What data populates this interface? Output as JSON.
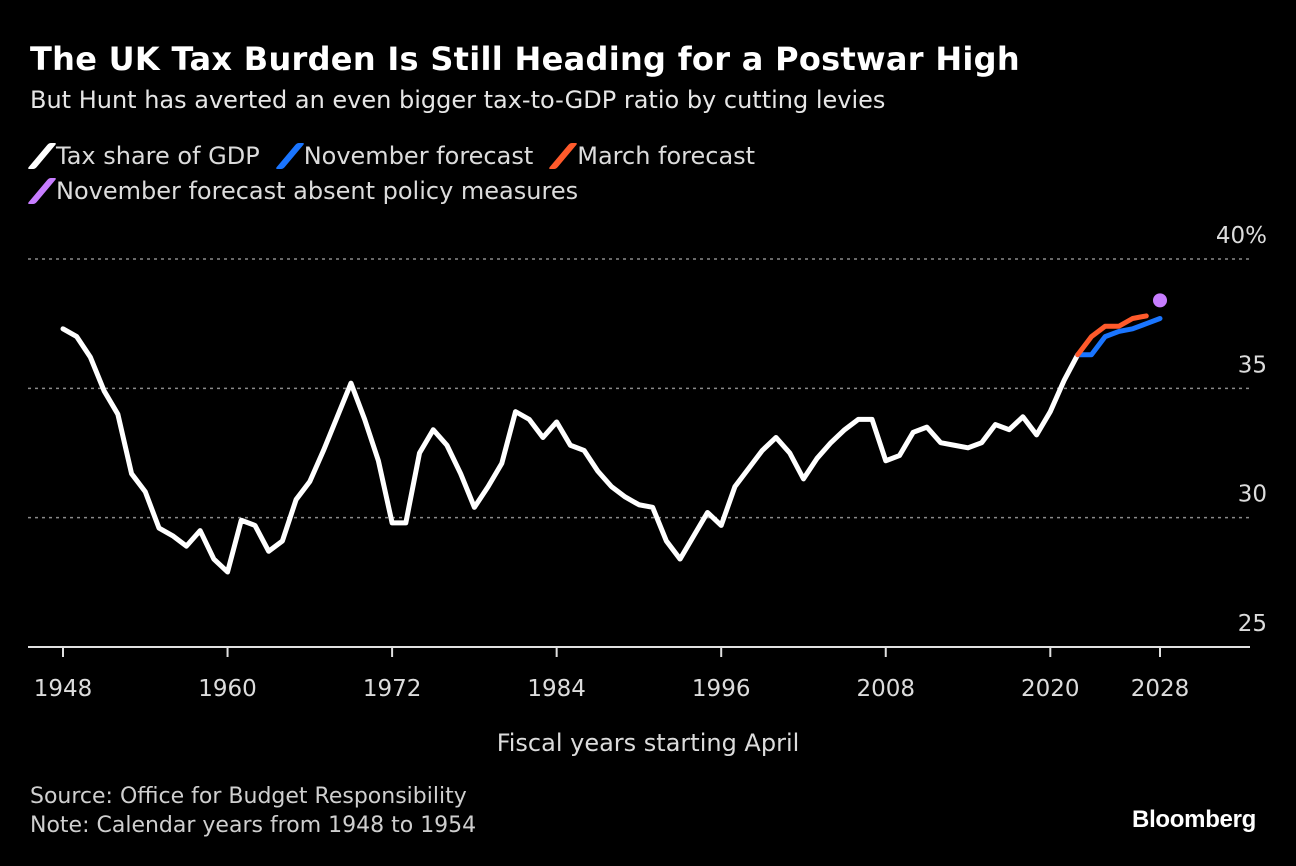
{
  "chart_data": {
    "type": "line",
    "title": "The UK Tax Burden Is Still Heading for a Postwar High",
    "subtitle": "But Hunt has averted an even bigger tax-to-GDP ratio by cutting levies",
    "xlabel": "Fiscal years starting April",
    "ylabel": "",
    "xlim": [
      1946,
      2034.6
    ],
    "ylim": [
      25,
      40
    ],
    "x_ticks": [
      1948,
      1960,
      1972,
      1984,
      1996,
      2008,
      2020,
      2028
    ],
    "y_ticks": [
      {
        "value": 25,
        "label": "25"
      },
      {
        "value": 30,
        "label": "30"
      },
      {
        "value": 35,
        "label": "35"
      },
      {
        "value": 40,
        "label": "40%"
      }
    ],
    "grid": true,
    "legend_position": "top-left",
    "series": [
      {
        "name": "Tax share of GDP",
        "color": "#ffffff",
        "type": "line",
        "x": [
          1948,
          1949,
          1950,
          1951,
          1952,
          1953,
          1954,
          1955,
          1956,
          1957,
          1958,
          1959,
          1960,
          1961,
          1962,
          1963,
          1964,
          1965,
          1966,
          1967,
          1968,
          1969,
          1970,
          1971,
          1972,
          1973,
          1974,
          1975,
          1976,
          1977,
          1978,
          1979,
          1980,
          1981,
          1982,
          1983,
          1984,
          1985,
          1986,
          1987,
          1988,
          1989,
          1990,
          1991,
          1992,
          1993,
          1994,
          1995,
          1996,
          1997,
          1998,
          1999,
          2000,
          2001,
          2002,
          2003,
          2004,
          2005,
          2006,
          2007,
          2008,
          2009,
          2010,
          2011,
          2012,
          2013,
          2014,
          2015,
          2016,
          2017,
          2018,
          2019,
          2020,
          2021,
          2022
        ],
        "values": [
          37.3,
          37.0,
          36.2,
          34.9,
          34.0,
          31.7,
          31.0,
          29.6,
          29.3,
          28.9,
          29.5,
          28.4,
          27.9,
          29.9,
          29.7,
          28.7,
          29.1,
          30.7,
          31.4,
          32.6,
          33.9,
          35.2,
          33.8,
          32.2,
          29.8,
          29.8,
          32.5,
          33.4,
          32.8,
          31.7,
          30.4,
          31.2,
          32.1,
          34.1,
          33.8,
          33.1,
          33.7,
          32.8,
          32.6,
          31.8,
          31.2,
          30.8,
          30.5,
          30.4,
          29.1,
          28.4,
          29.3,
          30.2,
          29.7,
          31.2,
          31.9,
          32.6,
          33.1,
          32.5,
          31.5,
          32.3,
          32.9,
          33.4,
          33.8,
          33.8,
          32.2,
          32.4,
          33.3,
          33.5,
          32.9,
          32.8,
          32.7,
          32.9,
          33.6,
          33.4,
          33.9,
          33.2,
          34.1,
          35.3,
          36.3
        ]
      },
      {
        "name": "November forecast",
        "color": "#1a75ff",
        "type": "line",
        "x": [
          2022,
          2023,
          2024,
          2025,
          2026,
          2027,
          2028
        ],
        "values": [
          36.3,
          36.3,
          37.0,
          37.2,
          37.3,
          37.5,
          37.7
        ]
      },
      {
        "name": "March forecast",
        "color": "#ff5a2b",
        "type": "line",
        "x": [
          2022,
          2023,
          2024,
          2025,
          2026,
          2027
        ],
        "values": [
          36.3,
          37.0,
          37.4,
          37.4,
          37.7,
          37.8
        ]
      },
      {
        "name": "November forecast absent policy measures",
        "color": "#c77dff",
        "type": "point",
        "x": [
          2028
        ],
        "values": [
          38.4
        ]
      }
    ]
  },
  "footer": {
    "source": "Source: Office for Budget Responsibility",
    "note": "Note: Calendar years from 1948 to 1954",
    "logo": "Bloomberg"
  }
}
